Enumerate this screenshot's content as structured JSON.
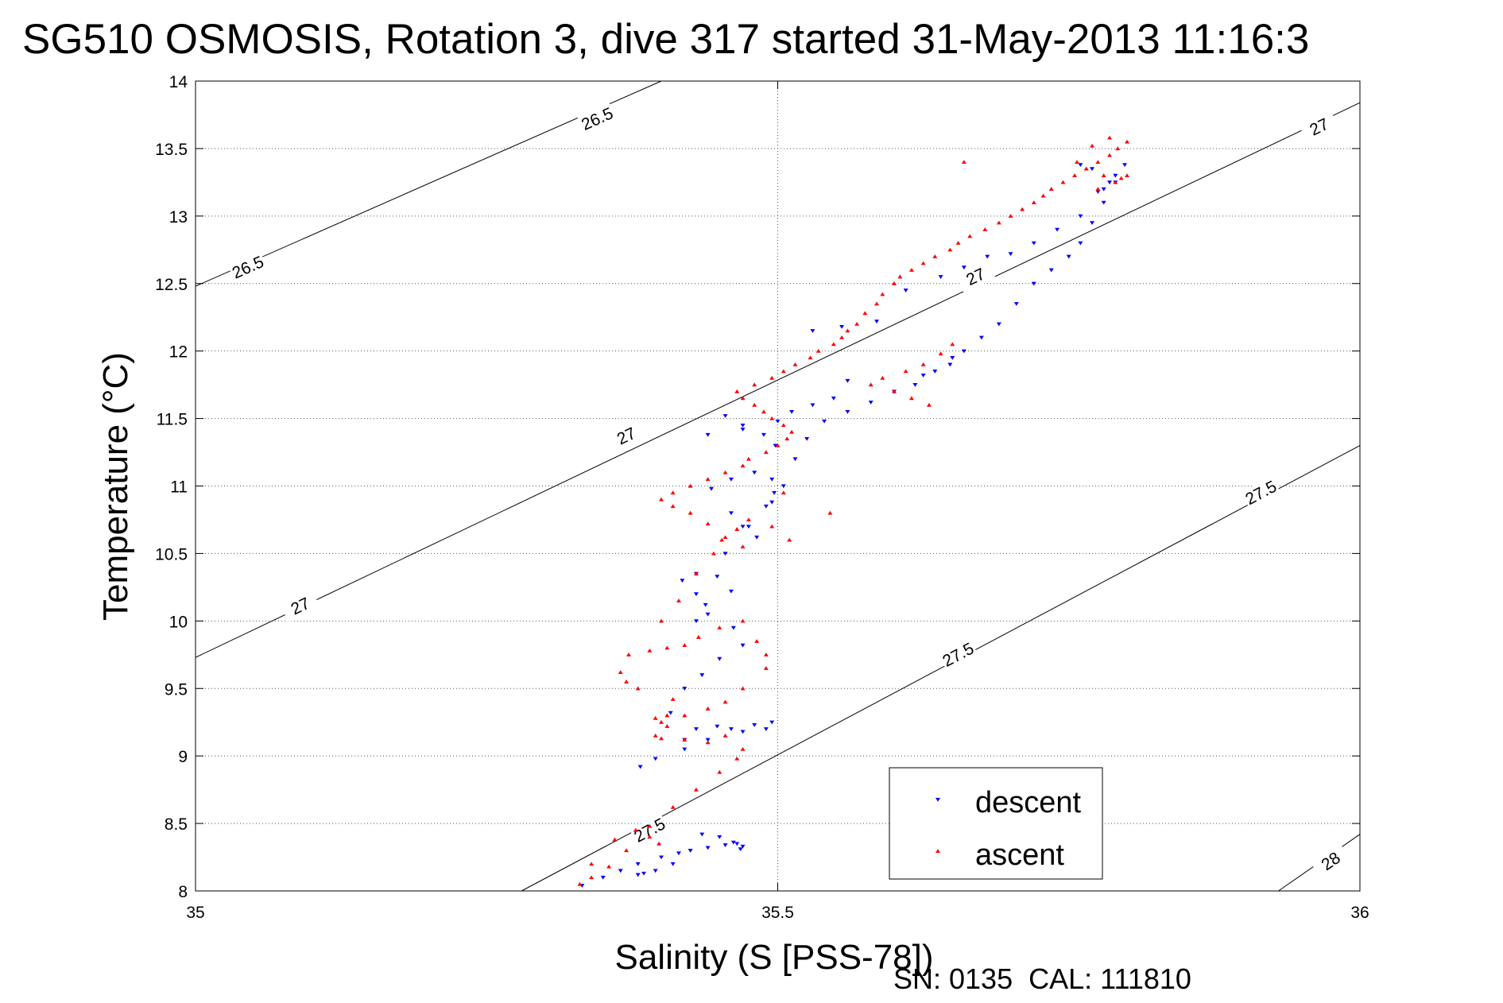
{
  "chart_data": {
    "type": "scatter",
    "title": "SG510 OSMOSIS, Rotation 3, dive 317 started 31-May-2013 11:16:3",
    "xlabel": "Salinity (S [PSS-78])",
    "ylabel": "Temperature (°C)",
    "xlim": [
      35,
      36
    ],
    "ylim": [
      8,
      14
    ],
    "xticks": [
      35,
      35.5,
      36
    ],
    "xtick_labels": [
      "35",
      "35.5",
      "36"
    ],
    "yticks": [
      8,
      8.5,
      9,
      9.5,
      10,
      10.5,
      11,
      11.5,
      12,
      12.5,
      13,
      13.5,
      14
    ],
    "ytick_labels": [
      "8",
      "8.5",
      "9",
      "9.5",
      "10",
      "10.5",
      "11",
      "11.5",
      "12",
      "12.5",
      "13",
      "13.5",
      "14"
    ],
    "grid": true,
    "legend_position": "bottom-right",
    "footer": "SN: 0135  CAL: 111810",
    "density_contours": [
      {
        "level": "26.5",
        "points": [
          [
            35.0,
            12.48
          ],
          [
            35.4,
            14.0
          ]
        ],
        "labels": [
          {
            "text": "26.5",
            "x": 35.045,
            "y": 12.62
          },
          {
            "text": "26.5",
            "x": 35.345,
            "y": 13.72
          }
        ]
      },
      {
        "level": "27",
        "points": [
          [
            35.0,
            9.73
          ],
          [
            36.0,
            13.84
          ]
        ],
        "labels": [
          {
            "text": "27",
            "x": 35.09,
            "y": 10.11
          },
          {
            "text": "27",
            "x": 35.37,
            "y": 11.37
          },
          {
            "text": "27",
            "x": 35.67,
            "y": 12.55
          },
          {
            "text": "27",
            "x": 35.965,
            "y": 13.66
          }
        ]
      },
      {
        "level": "27.5",
        "points": [
          [
            35.28,
            8.0
          ],
          [
            36.0,
            11.3
          ]
        ],
        "labels": [
          {
            "text": "27.5",
            "x": 35.39,
            "y": 8.45
          },
          {
            "text": "27.5",
            "x": 35.655,
            "y": 9.75
          },
          {
            "text": "27.5",
            "x": 35.915,
            "y": 10.95
          }
        ]
      },
      {
        "level": "28",
        "points": [
          [
            35.93,
            8.0
          ],
          [
            36.0,
            8.42
          ]
        ],
        "labels": [
          {
            "text": "28",
            "x": 35.975,
            "y": 8.22
          }
        ]
      }
    ],
    "series": [
      {
        "name": "descent",
        "color": "#0000ff",
        "marker": "triangle-down",
        "x": [
          35.332,
          35.35,
          35.365,
          35.38,
          35.4,
          35.415,
          35.425,
          35.44,
          35.455,
          35.465,
          35.47,
          35.468,
          35.462,
          35.45,
          35.435,
          35.425,
          35.41,
          35.395,
          35.385,
          35.38,
          35.382,
          35.395,
          35.42,
          35.44,
          35.46,
          35.48,
          35.495,
          35.49,
          35.47,
          35.448,
          35.43,
          35.42,
          35.408,
          35.42,
          35.435,
          35.45,
          35.47,
          35.462,
          35.44,
          35.43,
          35.418,
          35.43,
          35.448,
          35.46,
          35.438,
          35.43,
          35.455,
          35.475,
          35.49,
          35.497,
          35.495,
          35.48,
          35.46,
          35.443,
          35.46,
          35.47,
          35.482,
          35.495,
          35.505,
          35.515,
          35.525,
          35.54,
          35.56,
          35.58,
          35.6,
          35.618,
          35.635,
          35.648,
          35.66,
          35.675,
          35.69,
          35.705,
          35.72,
          35.735,
          35.75,
          35.76,
          35.77,
          35.78,
          35.79,
          35.798,
          35.79,
          35.78,
          35.77,
          35.76,
          35.65,
          35.625,
          35.56,
          35.548,
          35.53,
          35.512,
          35.5,
          35.47,
          35.44,
          35.455,
          35.47,
          35.488,
          35.498,
          35.53,
          35.555,
          35.585,
          35.61,
          35.64,
          35.66,
          35.68,
          35.7,
          35.72,
          35.74,
          35.76,
          35.775,
          35.785
        ],
        "y": [
          8.04,
          8.1,
          8.15,
          8.2,
          8.25,
          8.28,
          8.3,
          8.32,
          8.34,
          8.35,
          8.33,
          8.31,
          8.36,
          8.4,
          8.42,
          8.3,
          8.2,
          8.15,
          8.13,
          8.12,
          8.92,
          8.98,
          9.05,
          9.12,
          9.2,
          9.23,
          9.25,
          9.2,
          9.18,
          9.22,
          9.2,
          9.12,
          9.32,
          9.5,
          9.6,
          9.72,
          9.82,
          9.95,
          10.05,
          10.2,
          10.3,
          10.35,
          10.33,
          10.22,
          10.12,
          10.0,
          10.5,
          10.7,
          10.85,
          10.95,
          11.05,
          11.1,
          11.05,
          10.98,
          10.8,
          10.7,
          10.62,
          10.88,
          11.0,
          11.2,
          11.35,
          11.48,
          11.55,
          11.62,
          11.7,
          11.75,
          11.85,
          11.9,
          12.0,
          12.1,
          12.2,
          12.35,
          12.5,
          12.6,
          12.7,
          12.8,
          12.95,
          13.1,
          13.25,
          13.38,
          13.3,
          13.2,
          13.35,
          13.38,
          11.95,
          11.82,
          11.78,
          11.65,
          11.6,
          11.55,
          11.48,
          11.42,
          11.38,
          11.52,
          11.45,
          11.38,
          11.3,
          12.15,
          12.18,
          12.22,
          12.45,
          12.55,
          12.62,
          12.7,
          12.72,
          12.8,
          12.9,
          13.0,
          13.18,
          13.25
        ]
      },
      {
        "name": "ascent",
        "color": "#ff0000",
        "marker": "triangle-up",
        "x": [
          35.33,
          35.34,
          35.355,
          35.37,
          35.39,
          35.41,
          35.43,
          35.45,
          35.465,
          35.47,
          35.455,
          35.44,
          35.42,
          35.4,
          35.395,
          35.405,
          35.41,
          35.38,
          35.37,
          35.365,
          35.372,
          35.39,
          35.405,
          35.42,
          35.432,
          35.45,
          35.47,
          35.482,
          35.49,
          35.49,
          35.47,
          35.455,
          35.44,
          35.42,
          35.405,
          35.4,
          35.395,
          35.4,
          35.415,
          35.43,
          35.445,
          35.455,
          35.44,
          35.425,
          35.41,
          35.4,
          35.41,
          35.425,
          35.44,
          35.455,
          35.47,
          35.475,
          35.49,
          35.5,
          35.508,
          35.512,
          35.505,
          35.495,
          35.488,
          35.48,
          35.47,
          35.465,
          35.48,
          35.495,
          35.505,
          35.515,
          35.528,
          35.535,
          35.548,
          35.555,
          35.56,
          35.568,
          35.575,
          35.585,
          35.59,
          35.6,
          35.605,
          35.615,
          35.625,
          35.635,
          35.648,
          35.655,
          35.665,
          35.678,
          35.69,
          35.7,
          35.71,
          35.72,
          35.728,
          35.735,
          35.745,
          35.755,
          35.765,
          35.775,
          35.785,
          35.792,
          35.8,
          35.785,
          35.77,
          35.757,
          35.765,
          35.78,
          35.795,
          35.8,
          35.79,
          35.775,
          35.66,
          35.65,
          35.64,
          35.625,
          35.61,
          35.59,
          35.58,
          35.6,
          35.615,
          35.63,
          35.545,
          35.505,
          35.495,
          35.51,
          35.47,
          35.452,
          35.465,
          35.475,
          35.398,
          35.39,
          35.378,
          35.36,
          35.34
        ],
        "y": [
          8.05,
          8.1,
          8.18,
          8.3,
          8.48,
          8.62,
          8.75,
          8.88,
          8.98,
          9.05,
          9.15,
          9.1,
          9.12,
          9.13,
          9.15,
          9.3,
          9.42,
          9.5,
          9.55,
          9.62,
          9.75,
          9.78,
          9.8,
          9.82,
          9.88,
          9.95,
          10.0,
          9.85,
          9.75,
          9.65,
          9.5,
          9.4,
          9.35,
          9.3,
          9.22,
          9.25,
          9.28,
          10.0,
          10.15,
          10.35,
          10.5,
          10.62,
          10.72,
          10.8,
          10.85,
          10.9,
          10.95,
          11.0,
          11.05,
          11.1,
          11.15,
          11.2,
          11.25,
          11.3,
          11.35,
          11.4,
          11.45,
          11.5,
          11.55,
          11.6,
          11.65,
          11.7,
          11.75,
          11.8,
          11.85,
          11.9,
          11.95,
          12.0,
          12.05,
          12.1,
          12.15,
          12.2,
          12.28,
          12.35,
          12.42,
          12.5,
          12.55,
          12.6,
          12.65,
          12.7,
          12.75,
          12.8,
          12.85,
          12.9,
          12.95,
          13.0,
          13.05,
          13.1,
          13.15,
          13.2,
          13.25,
          13.3,
          13.35,
          13.4,
          13.45,
          13.5,
          13.55,
          13.58,
          13.52,
          13.4,
          13.35,
          13.3,
          13.28,
          13.3,
          13.25,
          13.2,
          13.4,
          12.05,
          11.98,
          11.9,
          11.85,
          11.8,
          11.75,
          11.7,
          11.65,
          11.6,
          10.8,
          10.95,
          10.7,
          10.6,
          10.55,
          10.6,
          10.68,
          10.75,
          8.35,
          8.4,
          8.45,
          8.38,
          8.2
        ]
      }
    ]
  }
}
